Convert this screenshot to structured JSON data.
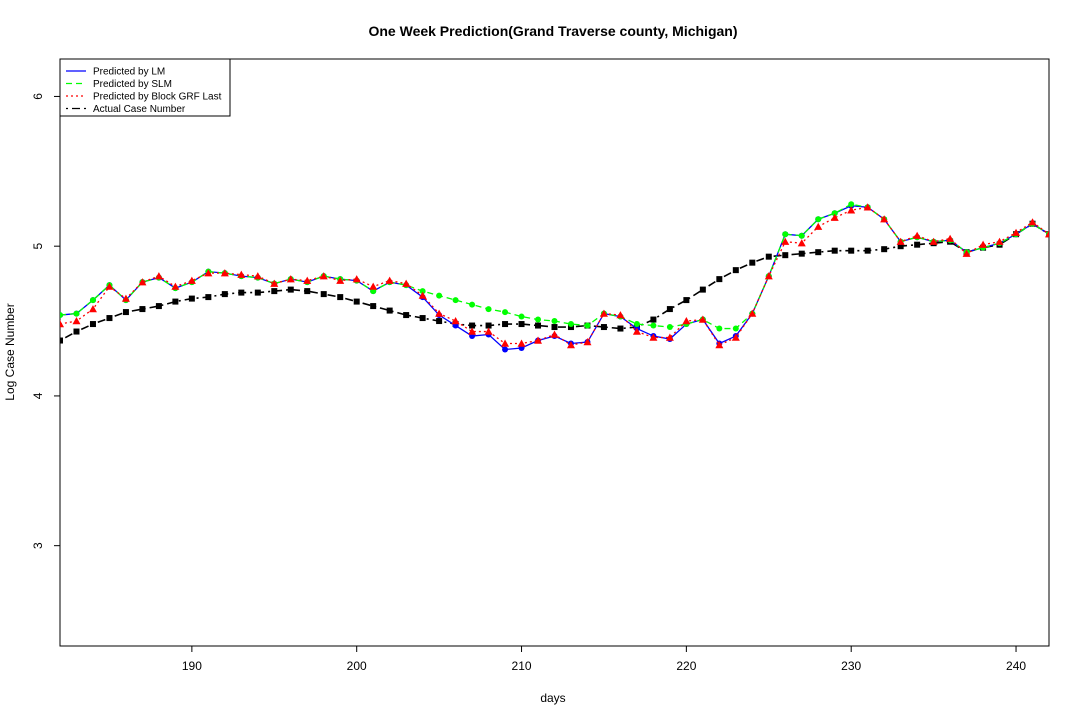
{
  "chart_data": {
    "type": "line",
    "title": "One Week Prediction(Grand Traverse county, Michigan)",
    "xlabel": "days",
    "ylabel": "Log Case Number",
    "xlim": [
      182,
      242
    ],
    "ylim": [
      2.33,
      6.25
    ],
    "x_ticks": [
      190,
      200,
      210,
      220,
      230,
      240
    ],
    "y_ticks": [
      3,
      4,
      5,
      6
    ],
    "grid": false,
    "legend_position": "top-left",
    "x": [
      182,
      183,
      184,
      185,
      186,
      187,
      188,
      189,
      190,
      191,
      192,
      193,
      194,
      195,
      196,
      197,
      198,
      199,
      200,
      201,
      202,
      203,
      204,
      205,
      206,
      207,
      208,
      209,
      210,
      211,
      212,
      213,
      214,
      215,
      216,
      217,
      218,
      219,
      220,
      221,
      222,
      223,
      224,
      225,
      226,
      227,
      228,
      229,
      230,
      231,
      232,
      233,
      234,
      235,
      236,
      237,
      238,
      239,
      240,
      241,
      242
    ],
    "series": [
      {
        "name": "Predicted by LM",
        "color": "#0000ff",
        "line_style": "solid",
        "marker": "circle",
        "values": [
          4.54,
          4.55,
          4.64,
          4.74,
          4.64,
          4.76,
          4.79,
          4.72,
          4.76,
          4.83,
          4.82,
          4.8,
          4.79,
          4.75,
          4.78,
          4.76,
          4.8,
          4.78,
          4.77,
          4.7,
          4.76,
          4.74,
          4.66,
          4.54,
          4.47,
          4.4,
          4.41,
          4.31,
          4.32,
          4.37,
          4.4,
          4.35,
          4.36,
          4.55,
          4.53,
          4.45,
          4.4,
          4.38,
          4.48,
          4.51,
          4.35,
          4.4,
          4.55,
          4.8,
          5.08,
          5.07,
          5.18,
          5.22,
          5.27,
          5.26,
          5.18,
          5.03,
          5.06,
          5.03,
          5.04,
          4.96,
          4.99,
          5.02,
          5.08,
          5.15,
          5.08
        ]
      },
      {
        "name": "Predicted by SLM",
        "color": "#00ff00",
        "line_style": "dashed",
        "marker": "circle",
        "values": [
          4.54,
          4.55,
          4.64,
          4.74,
          4.64,
          4.76,
          4.79,
          4.72,
          4.76,
          4.83,
          4.82,
          4.8,
          4.79,
          4.75,
          4.78,
          4.76,
          4.8,
          4.78,
          4.77,
          4.7,
          4.76,
          4.74,
          4.7,
          4.67,
          4.64,
          4.61,
          4.58,
          4.56,
          4.53,
          4.51,
          4.5,
          4.48,
          4.47,
          4.55,
          4.53,
          4.48,
          4.47,
          4.46,
          4.48,
          4.51,
          4.45,
          4.45,
          4.55,
          4.8,
          5.08,
          5.07,
          5.18,
          5.22,
          5.28,
          5.26,
          5.18,
          5.03,
          5.06,
          5.03,
          5.04,
          4.96,
          4.99,
          5.02,
          5.08,
          5.15,
          5.08
        ]
      },
      {
        "name": "Predicted by Block GRF Last",
        "color": "#ff0000",
        "line_style": "dotted",
        "marker": "triangle",
        "values": [
          4.48,
          4.5,
          4.58,
          4.73,
          4.65,
          4.76,
          4.8,
          4.73,
          4.77,
          4.82,
          4.82,
          4.81,
          4.8,
          4.75,
          4.78,
          4.77,
          4.8,
          4.77,
          4.78,
          4.73,
          4.77,
          4.75,
          4.67,
          4.55,
          4.5,
          4.43,
          4.43,
          4.35,
          4.35,
          4.37,
          4.41,
          4.34,
          4.36,
          4.55,
          4.54,
          4.43,
          4.39,
          4.39,
          4.5,
          4.51,
          4.34,
          4.39,
          4.55,
          4.8,
          5.03,
          5.02,
          5.13,
          5.19,
          5.24,
          5.26,
          5.18,
          5.03,
          5.07,
          5.03,
          5.05,
          4.95,
          5.01,
          5.03,
          5.09,
          5.16,
          5.08
        ]
      },
      {
        "name": "Actual Case Number",
        "color": "#000000",
        "line_style": "dotdash",
        "marker": "square",
        "values": [
          4.37,
          4.43,
          4.48,
          4.52,
          4.56,
          4.58,
          4.6,
          4.63,
          4.65,
          4.66,
          4.68,
          4.69,
          4.69,
          4.7,
          4.71,
          4.7,
          4.68,
          4.66,
          4.63,
          4.6,
          4.57,
          4.54,
          4.52,
          4.5,
          4.48,
          4.47,
          4.47,
          4.48,
          4.48,
          4.47,
          4.46,
          4.46,
          4.47,
          4.46,
          4.45,
          4.46,
          4.51,
          4.58,
          4.64,
          4.71,
          4.78,
          4.84,
          4.89,
          4.93,
          4.94,
          4.95,
          4.96,
          4.97,
          4.97,
          4.97,
          4.98,
          5.0,
          5.01,
          5.02,
          5.03,
          4.96,
          4.99,
          5.01,
          5.08,
          5.15,
          5.08
        ]
      }
    ]
  }
}
